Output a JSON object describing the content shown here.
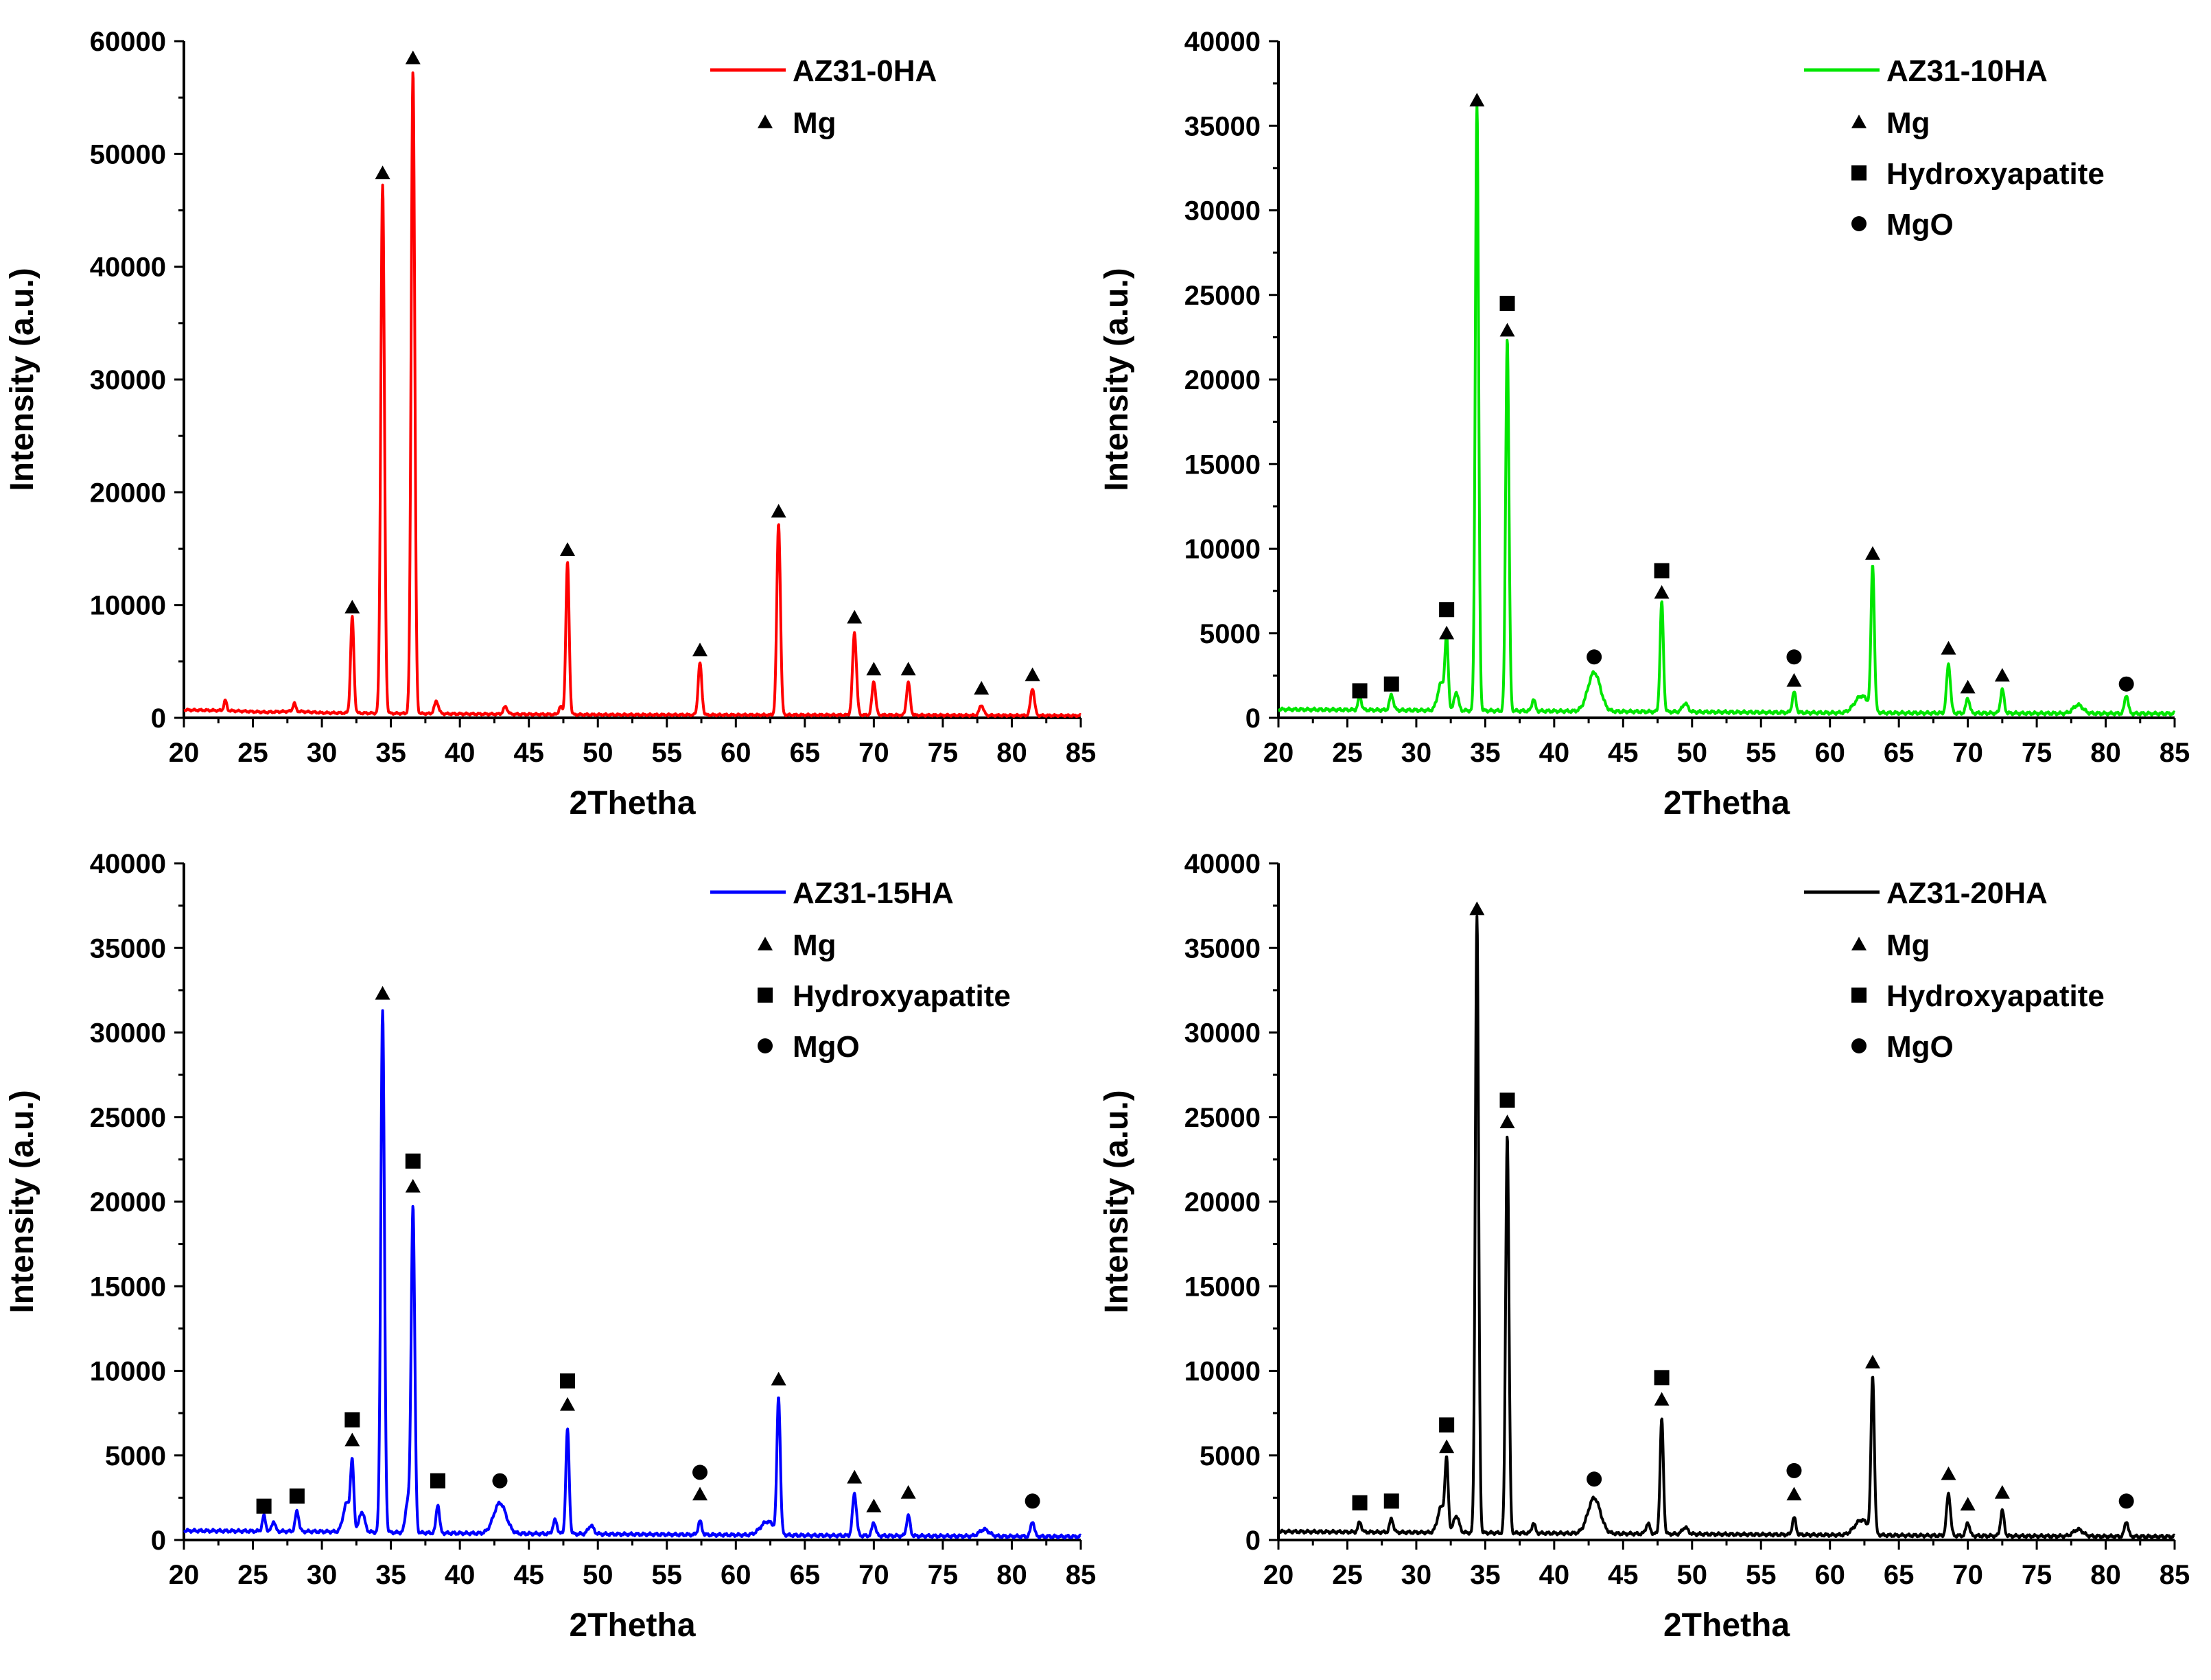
{
  "figure": {
    "panels_layout": "2x2 grid"
  },
  "chart_data": [
    {
      "type": "line",
      "series_name": "AZ31-0HA",
      "color": "#ff0000",
      "xlabel": "2Thetha",
      "ylabel": "Intensity (a.u.)",
      "xlim": [
        20,
        85
      ],
      "ylim": [
        0,
        60000
      ],
      "xticks": [
        20,
        25,
        30,
        35,
        40,
        45,
        50,
        55,
        60,
        65,
        70,
        75,
        80,
        85
      ],
      "yticks": [
        0,
        10000,
        20000,
        30000,
        40000,
        50000,
        60000
      ],
      "legend": {
        "placement": "top-right",
        "series_label": "AZ31-0HA",
        "phases": [
          {
            "symbol": "triangle",
            "label": "Mg"
          }
        ]
      },
      "baseline": [
        [
          20,
          700
        ],
        [
          23,
          650
        ],
        [
          26,
          500
        ],
        [
          28,
          600
        ],
        [
          30,
          450
        ],
        [
          40,
          350
        ],
        [
          50,
          280
        ],
        [
          60,
          260
        ],
        [
          70,
          250
        ],
        [
          85,
          200
        ]
      ],
      "peaks": [
        {
          "x": 23.0,
          "y": 900,
          "w": 0.1
        },
        {
          "x": 28.0,
          "y": 700,
          "w": 0.1
        },
        {
          "x": 32.2,
          "y": 8500,
          "w": 0.12
        },
        {
          "x": 34.4,
          "y": 46800,
          "w": 0.13
        },
        {
          "x": 36.6,
          "y": 57000,
          "w": 0.13
        },
        {
          "x": 38.3,
          "y": 1100,
          "w": 0.15
        },
        {
          "x": 43.3,
          "y": 650,
          "w": 0.15
        },
        {
          "x": 47.3,
          "y": 700,
          "w": 0.12
        },
        {
          "x": 47.8,
          "y": 13500,
          "w": 0.12
        },
        {
          "x": 57.4,
          "y": 4600,
          "w": 0.13
        },
        {
          "x": 63.1,
          "y": 17000,
          "w": 0.13
        },
        {
          "x": 68.6,
          "y": 7300,
          "w": 0.14
        },
        {
          "x": 70.0,
          "y": 3000,
          "w": 0.13
        },
        {
          "x": 72.5,
          "y": 2900,
          "w": 0.13
        },
        {
          "x": 77.8,
          "y": 900,
          "w": 0.15
        },
        {
          "x": 81.5,
          "y": 2400,
          "w": 0.14
        }
      ],
      "markers": [
        {
          "x": 32.2,
          "y": 9800,
          "symbol": "triangle"
        },
        {
          "x": 34.4,
          "y": 48300,
          "symbol": "triangle"
        },
        {
          "x": 36.6,
          "y": 58500,
          "symbol": "triangle"
        },
        {
          "x": 47.8,
          "y": 14900,
          "symbol": "triangle"
        },
        {
          "x": 57.4,
          "y": 6000,
          "symbol": "triangle"
        },
        {
          "x": 63.1,
          "y": 18300,
          "symbol": "triangle"
        },
        {
          "x": 68.6,
          "y": 8900,
          "symbol": "triangle"
        },
        {
          "x": 70.0,
          "y": 4300,
          "symbol": "triangle"
        },
        {
          "x": 72.5,
          "y": 4300,
          "symbol": "triangle"
        },
        {
          "x": 77.8,
          "y": 2600,
          "symbol": "triangle"
        },
        {
          "x": 81.5,
          "y": 3800,
          "symbol": "triangle"
        }
      ]
    },
    {
      "type": "line",
      "series_name": "AZ31-10HA",
      "color": "#00e600",
      "xlabel": "2Thetha",
      "ylabel": "Intensity (a.u.)",
      "xlim": [
        20,
        85
      ],
      "ylim": [
        0,
        40000
      ],
      "xticks": [
        20,
        25,
        30,
        35,
        40,
        45,
        50,
        55,
        60,
        65,
        70,
        75,
        80,
        85
      ],
      "yticks": [
        0,
        5000,
        10000,
        15000,
        20000,
        25000,
        30000,
        35000,
        40000
      ],
      "legend": {
        "placement": "top-right",
        "series_label": "AZ31-10HA",
        "phases": [
          {
            "symbol": "triangle",
            "label": "Mg"
          },
          {
            "symbol": "square",
            "label": "Hydroxyapatite"
          },
          {
            "symbol": "circle",
            "label": "MgO"
          }
        ]
      },
      "baseline": [
        [
          20,
          500
        ],
        [
          30,
          450
        ],
        [
          40,
          400
        ],
        [
          50,
          350
        ],
        [
          60,
          300
        ],
        [
          70,
          280
        ],
        [
          85,
          250
        ]
      ],
      "peaks": [
        {
          "x": 25.9,
          "y": 800,
          "w": 0.12
        },
        {
          "x": 28.2,
          "y": 900,
          "w": 0.14
        },
        {
          "x": 31.8,
          "y": 1600,
          "w": 0.25
        },
        {
          "x": 32.2,
          "y": 4000,
          "w": 0.12
        },
        {
          "x": 32.9,
          "y": 1100,
          "w": 0.15
        },
        {
          "x": 34.4,
          "y": 35800,
          "w": 0.12
        },
        {
          "x": 36.6,
          "y": 22000,
          "w": 0.12
        },
        {
          "x": 38.5,
          "y": 700,
          "w": 0.12
        },
        {
          "x": 42.9,
          "y": 2300,
          "w": 0.45
        },
        {
          "x": 47.8,
          "y": 6500,
          "w": 0.12
        },
        {
          "x": 49.5,
          "y": 500,
          "w": 0.2
        },
        {
          "x": 57.4,
          "y": 1200,
          "w": 0.13
        },
        {
          "x": 62.3,
          "y": 1000,
          "w": 0.5
        },
        {
          "x": 63.1,
          "y": 8500,
          "w": 0.12
        },
        {
          "x": 68.6,
          "y": 2900,
          "w": 0.14
        },
        {
          "x": 70.0,
          "y": 900,
          "w": 0.13
        },
        {
          "x": 72.5,
          "y": 1400,
          "w": 0.13
        },
        {
          "x": 78.0,
          "y": 500,
          "w": 0.35
        },
        {
          "x": 81.5,
          "y": 1100,
          "w": 0.13
        }
      ],
      "markers": [
        {
          "x": 25.9,
          "y": 1600,
          "symbol": "square"
        },
        {
          "x": 28.2,
          "y": 2000,
          "symbol": "square"
        },
        {
          "x": 32.2,
          "y": 5000,
          "symbol": "triangle"
        },
        {
          "x": 32.2,
          "y": 6400,
          "symbol": "square"
        },
        {
          "x": 34.4,
          "y": 36500,
          "symbol": "triangle"
        },
        {
          "x": 36.6,
          "y": 22900,
          "symbol": "triangle"
        },
        {
          "x": 36.6,
          "y": 24500,
          "symbol": "square"
        },
        {
          "x": 42.9,
          "y": 3600,
          "symbol": "circle"
        },
        {
          "x": 47.8,
          "y": 7400,
          "symbol": "triangle"
        },
        {
          "x": 47.8,
          "y": 8700,
          "symbol": "square"
        },
        {
          "x": 57.4,
          "y": 2200,
          "symbol": "triangle"
        },
        {
          "x": 57.4,
          "y": 3600,
          "symbol": "circle"
        },
        {
          "x": 63.1,
          "y": 9700,
          "symbol": "triangle"
        },
        {
          "x": 68.6,
          "y": 4100,
          "symbol": "triangle"
        },
        {
          "x": 70.0,
          "y": 1800,
          "symbol": "triangle"
        },
        {
          "x": 72.5,
          "y": 2500,
          "symbol": "triangle"
        },
        {
          "x": 81.5,
          "y": 2000,
          "symbol": "circle"
        }
      ]
    },
    {
      "type": "line",
      "series_name": "AZ31-15HA",
      "color": "#0000ff",
      "xlabel": "2Thetha",
      "ylabel": "Intensity (a.u.)",
      "xlim": [
        20,
        85
      ],
      "ylim": [
        0,
        40000
      ],
      "xticks": [
        20,
        25,
        30,
        35,
        40,
        45,
        50,
        55,
        60,
        65,
        70,
        75,
        80,
        85
      ],
      "yticks": [
        0,
        5000,
        10000,
        15000,
        20000,
        25000,
        30000,
        35000,
        40000
      ],
      "legend": {
        "placement": "top-right",
        "series_label": "AZ31-15HA",
        "phases": [
          {
            "symbol": "triangle",
            "label": "Mg"
          },
          {
            "symbol": "square",
            "label": "Hydroxyapatite"
          },
          {
            "symbol": "circle",
            "label": "MgO"
          }
        ]
      },
      "baseline": [
        [
          20,
          550
        ],
        [
          30,
          500
        ],
        [
          40,
          400
        ],
        [
          50,
          350
        ],
        [
          60,
          300
        ],
        [
          70,
          250
        ],
        [
          85,
          200
        ]
      ],
      "peaks": [
        {
          "x": 25.8,
          "y": 900,
          "w": 0.12
        },
        {
          "x": 26.5,
          "y": 600,
          "w": 0.12
        },
        {
          "x": 28.2,
          "y": 1200,
          "w": 0.13
        },
        {
          "x": 31.8,
          "y": 1700,
          "w": 0.25
        },
        {
          "x": 32.2,
          "y": 3800,
          "w": 0.12
        },
        {
          "x": 32.9,
          "y": 1200,
          "w": 0.2
        },
        {
          "x": 34.4,
          "y": 30800,
          "w": 0.13
        },
        {
          "x": 36.2,
          "y": 1800,
          "w": 0.15
        },
        {
          "x": 36.6,
          "y": 19300,
          "w": 0.13
        },
        {
          "x": 38.4,
          "y": 1700,
          "w": 0.12
        },
        {
          "x": 42.9,
          "y": 1800,
          "w": 0.45
        },
        {
          "x": 46.9,
          "y": 800,
          "w": 0.15
        },
        {
          "x": 47.8,
          "y": 6200,
          "w": 0.12
        },
        {
          "x": 49.5,
          "y": 500,
          "w": 0.2
        },
        {
          "x": 57.4,
          "y": 800,
          "w": 0.13
        },
        {
          "x": 62.3,
          "y": 800,
          "w": 0.5
        },
        {
          "x": 63.1,
          "y": 8000,
          "w": 0.12
        },
        {
          "x": 68.6,
          "y": 2500,
          "w": 0.14
        },
        {
          "x": 70.0,
          "y": 800,
          "w": 0.13
        },
        {
          "x": 72.5,
          "y": 1200,
          "w": 0.13
        },
        {
          "x": 78.0,
          "y": 400,
          "w": 0.35
        },
        {
          "x": 81.5,
          "y": 900,
          "w": 0.13
        }
      ],
      "markers": [
        {
          "x": 25.8,
          "y": 2000,
          "symbol": "square"
        },
        {
          "x": 28.2,
          "y": 2600,
          "symbol": "square"
        },
        {
          "x": 32.2,
          "y": 5900,
          "symbol": "triangle"
        },
        {
          "x": 32.2,
          "y": 7100,
          "symbol": "square"
        },
        {
          "x": 34.4,
          "y": 32300,
          "symbol": "triangle"
        },
        {
          "x": 36.6,
          "y": 20900,
          "symbol": "triangle"
        },
        {
          "x": 36.6,
          "y": 22400,
          "symbol": "square"
        },
        {
          "x": 38.4,
          "y": 3500,
          "symbol": "square"
        },
        {
          "x": 42.9,
          "y": 3500,
          "symbol": "circle"
        },
        {
          "x": 47.8,
          "y": 8000,
          "symbol": "triangle"
        },
        {
          "x": 47.8,
          "y": 9400,
          "symbol": "square"
        },
        {
          "x": 57.4,
          "y": 2700,
          "symbol": "triangle"
        },
        {
          "x": 57.4,
          "y": 4000,
          "symbol": "circle"
        },
        {
          "x": 63.1,
          "y": 9500,
          "symbol": "triangle"
        },
        {
          "x": 68.6,
          "y": 3700,
          "symbol": "triangle"
        },
        {
          "x": 70.0,
          "y": 2000,
          "symbol": "triangle"
        },
        {
          "x": 72.5,
          "y": 2800,
          "symbol": "triangle"
        },
        {
          "x": 81.5,
          "y": 2300,
          "symbol": "circle"
        }
      ]
    },
    {
      "type": "line",
      "series_name": "AZ31-20HA",
      "color": "#000000",
      "xlabel": "2Thetha",
      "ylabel": "Intensity (a.u.)",
      "xlim": [
        20,
        85
      ],
      "ylim": [
        0,
        40000
      ],
      "xticks": [
        20,
        25,
        30,
        35,
        40,
        45,
        50,
        55,
        60,
        65,
        70,
        75,
        80,
        85
      ],
      "yticks": [
        0,
        5000,
        10000,
        15000,
        20000,
        25000,
        30000,
        35000,
        40000
      ],
      "legend": {
        "placement": "top-right",
        "series_label": "AZ31-20HA",
        "phases": [
          {
            "symbol": "triangle",
            "label": "Mg"
          },
          {
            "symbol": "square",
            "label": "Hydroxyapatite"
          },
          {
            "symbol": "circle",
            "label": "MgO"
          }
        ]
      },
      "baseline": [
        [
          20,
          500
        ],
        [
          30,
          450
        ],
        [
          40,
          400
        ],
        [
          50,
          350
        ],
        [
          60,
          300
        ],
        [
          70,
          250
        ],
        [
          85,
          200
        ]
      ],
      "peaks": [
        {
          "x": 25.9,
          "y": 600,
          "w": 0.12
        },
        {
          "x": 28.2,
          "y": 800,
          "w": 0.13
        },
        {
          "x": 31.8,
          "y": 1500,
          "w": 0.25
        },
        {
          "x": 32.2,
          "y": 4000,
          "w": 0.12
        },
        {
          "x": 32.9,
          "y": 1000,
          "w": 0.2
        },
        {
          "x": 34.4,
          "y": 36400,
          "w": 0.12
        },
        {
          "x": 36.6,
          "y": 23500,
          "w": 0.12
        },
        {
          "x": 38.5,
          "y": 600,
          "w": 0.12
        },
        {
          "x": 42.9,
          "y": 2100,
          "w": 0.45
        },
        {
          "x": 46.8,
          "y": 600,
          "w": 0.15
        },
        {
          "x": 47.8,
          "y": 6800,
          "w": 0.12
        },
        {
          "x": 49.5,
          "y": 400,
          "w": 0.2
        },
        {
          "x": 57.4,
          "y": 1000,
          "w": 0.13
        },
        {
          "x": 62.3,
          "y": 900,
          "w": 0.5
        },
        {
          "x": 63.1,
          "y": 9200,
          "w": 0.12
        },
        {
          "x": 68.6,
          "y": 2500,
          "w": 0.14
        },
        {
          "x": 70.0,
          "y": 800,
          "w": 0.13
        },
        {
          "x": 72.5,
          "y": 1500,
          "w": 0.13
        },
        {
          "x": 78.0,
          "y": 400,
          "w": 0.35
        },
        {
          "x": 81.5,
          "y": 900,
          "w": 0.13
        }
      ],
      "markers": [
        {
          "x": 25.9,
          "y": 2200,
          "symbol": "square"
        },
        {
          "x": 28.2,
          "y": 2300,
          "symbol": "square"
        },
        {
          "x": 32.2,
          "y": 5500,
          "symbol": "triangle"
        },
        {
          "x": 32.2,
          "y": 6800,
          "symbol": "square"
        },
        {
          "x": 34.4,
          "y": 37300,
          "symbol": "triangle"
        },
        {
          "x": 36.6,
          "y": 24700,
          "symbol": "triangle"
        },
        {
          "x": 36.6,
          "y": 26000,
          "symbol": "square"
        },
        {
          "x": 42.9,
          "y": 3600,
          "symbol": "circle"
        },
        {
          "x": 47.8,
          "y": 8300,
          "symbol": "triangle"
        },
        {
          "x": 47.8,
          "y": 9600,
          "symbol": "square"
        },
        {
          "x": 57.4,
          "y": 2700,
          "symbol": "triangle"
        },
        {
          "x": 57.4,
          "y": 4100,
          "symbol": "circle"
        },
        {
          "x": 63.1,
          "y": 10500,
          "symbol": "triangle"
        },
        {
          "x": 68.6,
          "y": 3900,
          "symbol": "triangle"
        },
        {
          "x": 70.0,
          "y": 2100,
          "symbol": "triangle"
        },
        {
          "x": 72.5,
          "y": 2800,
          "symbol": "triangle"
        },
        {
          "x": 81.5,
          "y": 2300,
          "symbol": "circle"
        }
      ]
    }
  ]
}
